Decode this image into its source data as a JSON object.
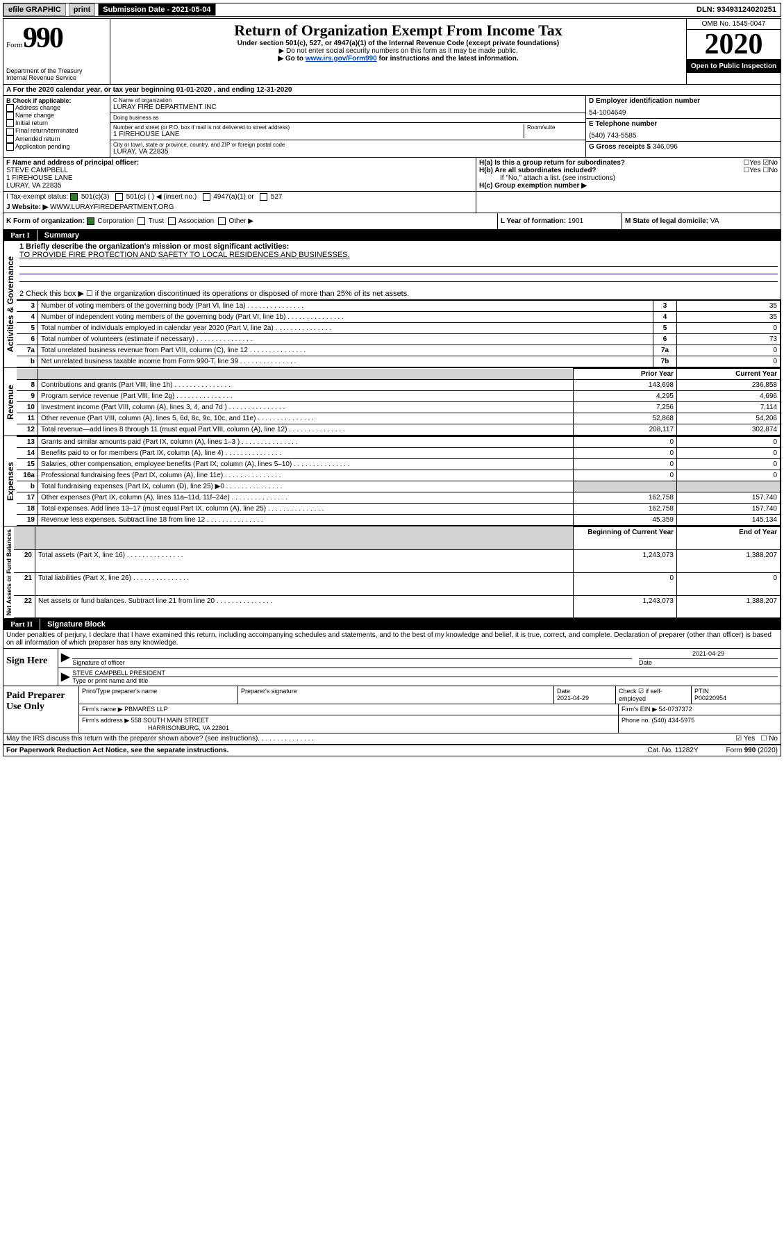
{
  "topbar": {
    "efile": "efile GRAPHIC",
    "print": "print",
    "subdate_label": "Submission Date - 2021-05-04",
    "dln": "DLN: 93493124020251"
  },
  "header": {
    "form_word": "Form",
    "form_num": "990",
    "dept1": "Department of the Treasury",
    "dept2": "Internal Revenue Service",
    "title": "Return of Organization Exempt From Income Tax",
    "sub1": "Under section 501(c), 527, or 4947(a)(1) of the Internal Revenue Code (except private foundations)",
    "sub2": "▶ Do not enter social security numbers on this form as it may be made public.",
    "sub3a": "▶ Go to ",
    "sub3_link": "www.irs.gov/Form990",
    "sub3b": " for instructions and the latest information.",
    "omb": "OMB No. 1545-0047",
    "year": "2020",
    "open": "Open to Public Inspection"
  },
  "rowA": "A For the 2020 calendar year, or tax year beginning 01-01-2020     , and ending 12-31-2020",
  "colB": {
    "head": "B Check if applicable:",
    "items": [
      "Address change",
      "Name change",
      "Initial return",
      "Final return/terminated",
      "Amended return",
      "Application pending"
    ]
  },
  "colC": {
    "name_lab": "C Name of organization",
    "name": "LURAY FIRE DEPARTMENT INC",
    "dba_lab": "Doing business as",
    "dba": "",
    "addr_lab": "Number and street (or P.O. box if mail is not delivered to street address)",
    "addr": "1 FIREHOUSE LANE",
    "room_lab": "Room/suite",
    "city_lab": "City or town, state or province, country, and ZIP or foreign postal code",
    "city": "LURAY, VA  22835"
  },
  "colD": {
    "ein_lab": "D Employer identification number",
    "ein": "54-1004649",
    "phone_lab": "E Telephone number",
    "phone": "(540) 743-5585",
    "gross_lab": "G Gross receipts $ ",
    "gross": "346,096"
  },
  "rowF": {
    "f_lab": "F  Name and address of principal officer:",
    "f_name": "STEVE CAMPBELL",
    "f_addr1": "1 FIREHOUSE LANE",
    "f_addr2": "LURAY, VA  22835",
    "ha": "H(a)  Is this a group return for subordinates?",
    "hb": "H(b)  Are all subordinates included?",
    "hb_note": "If \"No,\" attach a list. (see instructions)",
    "hc": "H(c)  Group exemption number ▶"
  },
  "rowI": {
    "label": "I    Tax-exempt status:",
    "opts": [
      "501(c)(3)",
      "501(c) (   ) ◀ (insert no.)",
      "4947(a)(1) or",
      "527"
    ]
  },
  "rowJ": {
    "label": "J    Website: ▶ ",
    "val": "WWW.LURAYFIREDEPARTMENT.ORG"
  },
  "rowK": {
    "k": "K Form of organization:",
    "opts": [
      "Corporation",
      "Trust",
      "Association",
      "Other ▶"
    ],
    "l_lab": "L Year of formation: ",
    "l_val": "1901",
    "m_lab": "M State of legal domicile: ",
    "m_val": "VA"
  },
  "part1": {
    "num": "Part I",
    "title": "Summary"
  },
  "gov": {
    "side": "Activities & Governance",
    "l1a": "1   Briefly describe the organization's mission or most significant activities:",
    "l1b": "TO PROVIDE FIRE PROTECTION AND SAFETY TO LOCAL RESIDENCES AND BUSINESSES.",
    "l2": "2   Check this box ▶ ☐  if the organization discontinued its operations or disposed of more than 25% of its net assets.",
    "rows": [
      {
        "n": "3",
        "d": "Number of voting members of the governing body (Part VI, line 1a)",
        "box": "3",
        "v": "35"
      },
      {
        "n": "4",
        "d": "Number of independent voting members of the governing body (Part VI, line 1b)",
        "box": "4",
        "v": "35"
      },
      {
        "n": "5",
        "d": "Total number of individuals employed in calendar year 2020 (Part V, line 2a)",
        "box": "5",
        "v": "0"
      },
      {
        "n": "6",
        "d": "Total number of volunteers (estimate if necessary)",
        "box": "6",
        "v": "73"
      },
      {
        "n": "7a",
        "d": "Total unrelated business revenue from Part VIII, column (C), line 12",
        "box": "7a",
        "v": "0"
      },
      {
        "n": "b",
        "d": "Net unrelated business taxable income from Form 990-T, line 39",
        "box": "7b",
        "v": "0"
      }
    ]
  },
  "rev": {
    "side": "Revenue",
    "hdr": [
      "",
      "",
      "Prior Year",
      "Current Year"
    ],
    "rows": [
      {
        "n": "8",
        "d": "Contributions and grants (Part VIII, line 1h)",
        "p": "143,698",
        "c": "236,858"
      },
      {
        "n": "9",
        "d": "Program service revenue (Part VIII, line 2g)",
        "p": "4,295",
        "c": "4,696"
      },
      {
        "n": "10",
        "d": "Investment income (Part VIII, column (A), lines 3, 4, and 7d )",
        "p": "7,256",
        "c": "7,114"
      },
      {
        "n": "11",
        "d": "Other revenue (Part VIII, column (A), lines 5, 6d, 8c, 9c, 10c, and 11e)",
        "p": "52,868",
        "c": "54,206"
      },
      {
        "n": "12",
        "d": "Total revenue—add lines 8 through 11 (must equal Part VIII, column (A), line 12)",
        "p": "208,117",
        "c": "302,874"
      }
    ]
  },
  "exp": {
    "side": "Expenses",
    "rows": [
      {
        "n": "13",
        "d": "Grants and similar amounts paid (Part IX, column (A), lines 1–3 )",
        "p": "0",
        "c": "0"
      },
      {
        "n": "14",
        "d": "Benefits paid to or for members (Part IX, column (A), line 4)",
        "p": "0",
        "c": "0"
      },
      {
        "n": "15",
        "d": "Salaries, other compensation, employee benefits (Part IX, column (A), lines 5–10)",
        "p": "0",
        "c": "0"
      },
      {
        "n": "16a",
        "d": "Professional fundraising fees (Part IX, column (A), line 11e)",
        "p": "0",
        "c": "0"
      },
      {
        "n": "b",
        "d": "Total fundraising expenses (Part IX, column (D), line 25) ▶0",
        "p": "shade",
        "c": "shade"
      },
      {
        "n": "17",
        "d": "Other expenses (Part IX, column (A), lines 11a–11d, 11f–24e)",
        "p": "162,758",
        "c": "157,740"
      },
      {
        "n": "18",
        "d": "Total expenses. Add lines 13–17 (must equal Part IX, column (A), line 25)",
        "p": "162,758",
        "c": "157,740"
      },
      {
        "n": "19",
        "d": "Revenue less expenses. Subtract line 18 from line 12",
        "p": "45,359",
        "c": "145,134"
      }
    ]
  },
  "net": {
    "side": "Net Assets or Fund Balances",
    "hdr": [
      "",
      "",
      "Beginning of Current Year",
      "End of Year"
    ],
    "rows": [
      {
        "n": "20",
        "d": "Total assets (Part X, line 16)",
        "p": "1,243,073",
        "c": "1,388,207"
      },
      {
        "n": "21",
        "d": "Total liabilities (Part X, line 26)",
        "p": "0",
        "c": "0"
      },
      {
        "n": "22",
        "d": "Net assets or fund balances. Subtract line 21 from line 20",
        "p": "1,243,073",
        "c": "1,388,207"
      }
    ]
  },
  "part2": {
    "num": "Part II",
    "title": "Signature Block"
  },
  "perjury": "Under penalties of perjury, I declare that I have examined this return, including accompanying schedules and statements, and to the best of my knowledge and belief, it is true, correct, and complete. Declaration of preparer (other than officer) is based on all information of which preparer has any knowledge.",
  "sign": {
    "label": "Sign Here",
    "sig_lab": "Signature of officer",
    "date": "2021-04-29",
    "date_lab": "Date",
    "name": "STEVE CAMPBELL  PRESIDENT",
    "name_lab": "Type or print name and title"
  },
  "paid": {
    "label": "Paid Preparer Use Only",
    "h1": "Print/Type preparer's name",
    "h2": "Preparer's signature",
    "h3": "Date",
    "h4": "Check ☑ if self-employed",
    "h5": "PTIN",
    "date": "2021-04-29",
    "ptin": "P00220954",
    "firm_lab": "Firm's name    ▶ ",
    "firm": "PBMARES LLP",
    "ein_lab": "Firm's EIN ▶ ",
    "ein": "54-0737372",
    "addr_lab": "Firm's address ▶ ",
    "addr1": "558 SOUTH MAIN STREET",
    "addr2": "HARRISONBURG, VA  22801",
    "phone_lab": "Phone no. ",
    "phone": "(540) 434-5975"
  },
  "footer": {
    "q": "May the IRS discuss this return with the preparer shown above? (see instructions)",
    "notice": "For Paperwork Reduction Act Notice, see the separate instructions.",
    "cat": "Cat. No. 11282Y",
    "form": "Form 990 (2020)"
  }
}
